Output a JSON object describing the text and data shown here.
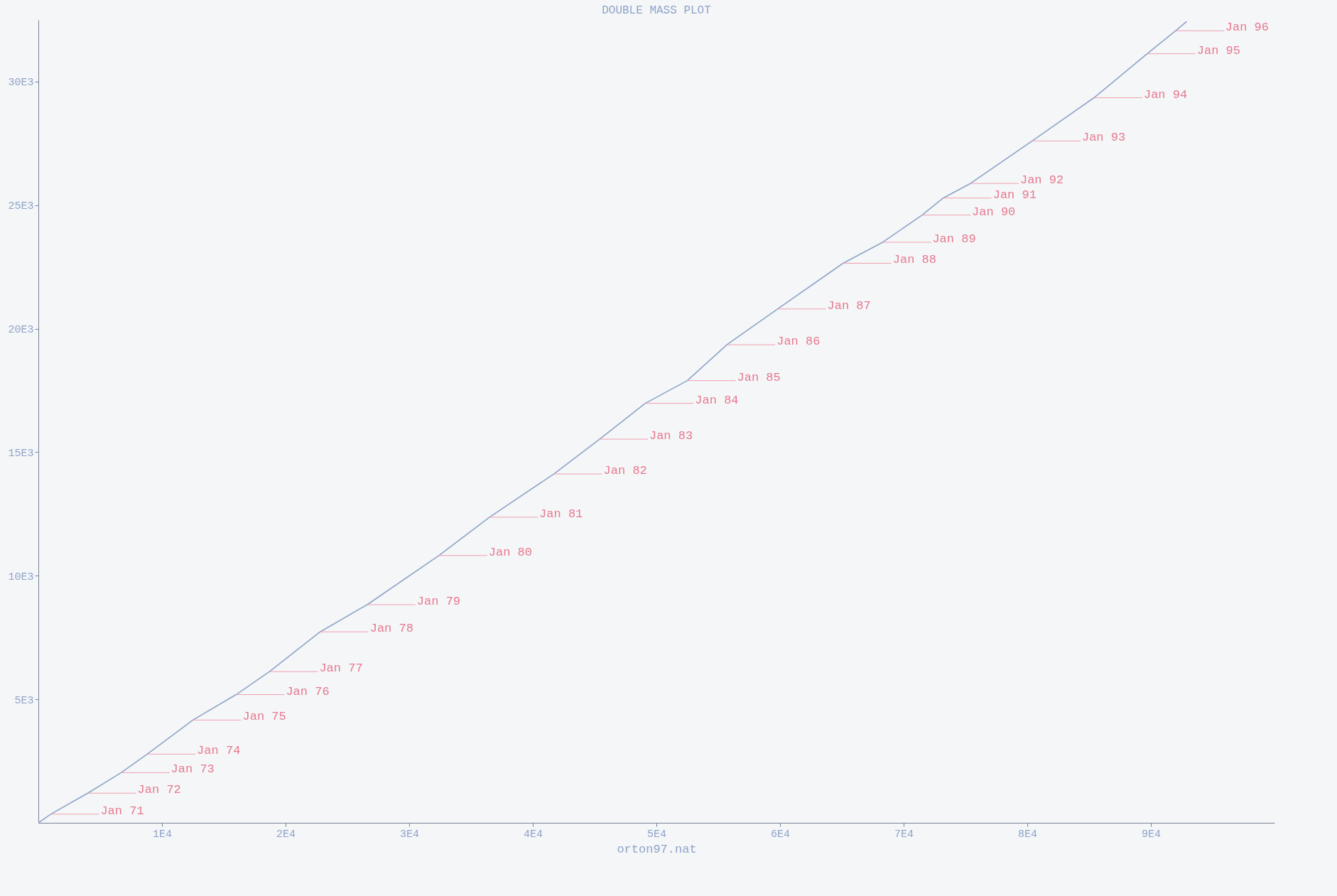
{
  "chart_data": {
    "type": "line",
    "title": "DOUBLE MASS PLOT",
    "xlabel": "orton97.nat",
    "x": [
      0,
      1000,
      4000,
      6700,
      8800,
      12500,
      16000,
      18700,
      22800,
      26600,
      32400,
      36500,
      41700,
      45400,
      49100,
      52500,
      55700,
      59800,
      65100,
      68300,
      71500,
      73200,
      75400,
      80400,
      85400,
      89700,
      92000,
      92900
    ],
    "series": [
      {
        "color": "#8fa3c8",
        "values": [
          0,
          350,
          1200,
          2030,
          2780,
          4160,
          5190,
          6120,
          7730,
          8830,
          10820,
          12370,
          14120,
          15530,
          16980,
          17900,
          19350,
          20800,
          22650,
          23500,
          24600,
          25290,
          25880,
          27600,
          29350,
          31130,
          32060,
          32440
        ]
      }
    ],
    "xlim": [
      0,
      100000
    ],
    "ylim": [
      0,
      32500
    ],
    "xticks": [
      {
        "value": 10000,
        "label": "1E4"
      },
      {
        "value": 20000,
        "label": "2E4"
      },
      {
        "value": 30000,
        "label": "3E4"
      },
      {
        "value": 40000,
        "label": "4E4"
      },
      {
        "value": 50000,
        "label": "5E4"
      },
      {
        "value": 60000,
        "label": "6E4"
      },
      {
        "value": 70000,
        "label": "7E4"
      },
      {
        "value": 80000,
        "label": "8E4"
      },
      {
        "value": 90000,
        "label": "9E4"
      }
    ],
    "yticks": [
      {
        "value": 5000,
        "label": "5E3"
      },
      {
        "value": 10000,
        "label": "10E3"
      },
      {
        "value": 15000,
        "label": "15E3"
      },
      {
        "value": 20000,
        "label": "20E3"
      },
      {
        "value": 25000,
        "label": "25E3"
      },
      {
        "value": 30000,
        "label": "30E3"
      }
    ],
    "annotations": [
      {
        "text": "Jan 71",
        "x": 1000,
        "y": 350
      },
      {
        "text": "Jan 72",
        "x": 4000,
        "y": 1200
      },
      {
        "text": "Jan 73",
        "x": 6700,
        "y": 2030
      },
      {
        "text": "Jan 74",
        "x": 8800,
        "y": 2780
      },
      {
        "text": "Jan 75",
        "x": 12500,
        "y": 4160
      },
      {
        "text": "Jan 76",
        "x": 16000,
        "y": 5190
      },
      {
        "text": "Jan 77",
        "x": 18700,
        "y": 6120
      },
      {
        "text": "Jan 78",
        "x": 22800,
        "y": 7730
      },
      {
        "text": "Jan 79",
        "x": 26600,
        "y": 8830
      },
      {
        "text": "Jan 80",
        "x": 32400,
        "y": 10820
      },
      {
        "text": "Jan 81",
        "x": 36500,
        "y": 12370
      },
      {
        "text": "Jan 82",
        "x": 41700,
        "y": 14120
      },
      {
        "text": "Jan 83",
        "x": 45400,
        "y": 15530
      },
      {
        "text": "Jan 84",
        "x": 49100,
        "y": 16980
      },
      {
        "text": "Jan 85",
        "x": 52500,
        "y": 17900
      },
      {
        "text": "Jan 86",
        "x": 55700,
        "y": 19350
      },
      {
        "text": "Jan 87",
        "x": 59800,
        "y": 20800
      },
      {
        "text": "Jan 88",
        "x": 65100,
        "y": 22650
      },
      {
        "text": "Jan 89",
        "x": 68300,
        "y": 23500
      },
      {
        "text": "Jan 90",
        "x": 71500,
        "y": 24600
      },
      {
        "text": "Jan 91",
        "x": 73200,
        "y": 25290
      },
      {
        "text": "Jan 92",
        "x": 75400,
        "y": 25880
      },
      {
        "text": "Jan 93",
        "x": 80400,
        "y": 27600
      },
      {
        "text": "Jan 94",
        "x": 85400,
        "y": 29350
      },
      {
        "text": "Jan 95",
        "x": 89700,
        "y": 31130
      },
      {
        "text": "Jan 96",
        "x": 92000,
        "y": 32060
      }
    ]
  }
}
